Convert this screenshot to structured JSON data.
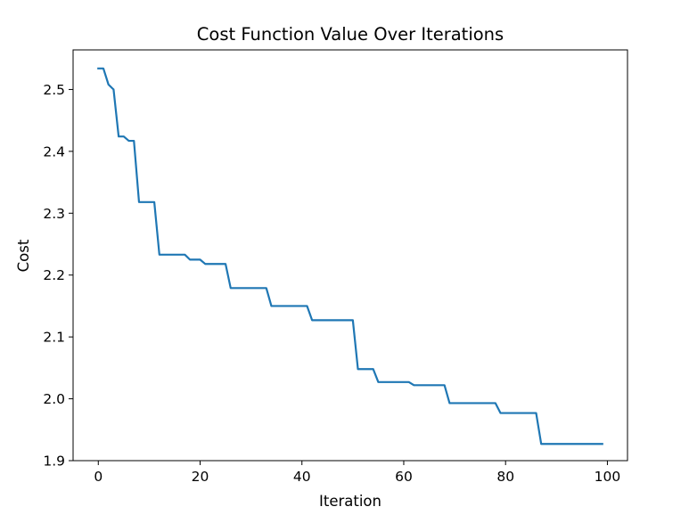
{
  "chart_data": {
    "type": "line",
    "title": "Cost Function Value Over Iterations",
    "xlabel": "Iteration",
    "ylabel": "Cost",
    "xlim": [
      -4.95,
      103.95
    ],
    "ylim": [
      1.9,
      2.564
    ],
    "xticks": [
      0,
      20,
      40,
      60,
      80,
      100
    ],
    "yticks": [
      1.9,
      2.0,
      2.1,
      2.2,
      2.3,
      2.4,
      2.5
    ],
    "grid": false,
    "legend": "none",
    "colors": {
      "line": "#1f77b4",
      "axes": "#000000",
      "background": "#ffffff"
    },
    "series": [
      {
        "color": "#1f77b4",
        "x": [
          0,
          1,
          2,
          3,
          4,
          5,
          6,
          7,
          8,
          9,
          10,
          11,
          12,
          13,
          14,
          15,
          16,
          17,
          18,
          19,
          20,
          21,
          22,
          23,
          24,
          25,
          26,
          27,
          28,
          29,
          30,
          31,
          32,
          33,
          34,
          35,
          36,
          37,
          38,
          39,
          40,
          41,
          42,
          43,
          44,
          45,
          46,
          47,
          48,
          49,
          50,
          51,
          52,
          53,
          54,
          55,
          56,
          57,
          58,
          59,
          60,
          61,
          62,
          63,
          64,
          65,
          66,
          67,
          68,
          69,
          70,
          71,
          72,
          73,
          74,
          75,
          76,
          77,
          78,
          79,
          80,
          81,
          82,
          83,
          84,
          85,
          86,
          87,
          88,
          89,
          90,
          91,
          92,
          93,
          94,
          95,
          96,
          97,
          98,
          99
        ],
        "y": [
          2.534,
          2.534,
          2.508,
          2.5,
          2.424,
          2.424,
          2.417,
          2.417,
          2.318,
          2.318,
          2.318,
          2.318,
          2.233,
          2.233,
          2.233,
          2.233,
          2.233,
          2.233,
          2.225,
          2.225,
          2.225,
          2.218,
          2.218,
          2.218,
          2.218,
          2.218,
          2.179,
          2.179,
          2.179,
          2.179,
          2.179,
          2.179,
          2.179,
          2.179,
          2.15,
          2.15,
          2.15,
          2.15,
          2.15,
          2.15,
          2.15,
          2.15,
          2.127,
          2.127,
          2.127,
          2.127,
          2.127,
          2.127,
          2.127,
          2.127,
          2.127,
          2.048,
          2.048,
          2.048,
          2.048,
          2.027,
          2.027,
          2.027,
          2.027,
          2.027,
          2.027,
          2.027,
          2.022,
          2.022,
          2.022,
          2.022,
          2.022,
          2.022,
          2.022,
          1.993,
          1.993,
          1.993,
          1.993,
          1.993,
          1.993,
          1.993,
          1.993,
          1.993,
          1.993,
          1.977,
          1.977,
          1.977,
          1.977,
          1.977,
          1.977,
          1.977,
          1.977,
          1.927,
          1.927,
          1.927,
          1.927,
          1.927,
          1.927,
          1.927,
          1.927,
          1.927,
          1.927,
          1.927,
          1.927,
          1.927
        ]
      }
    ]
  }
}
